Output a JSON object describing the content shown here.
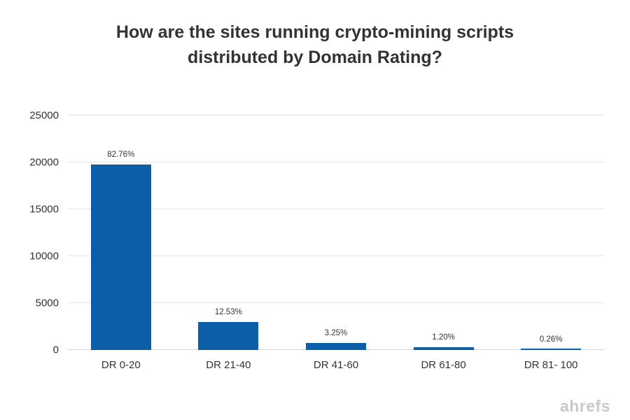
{
  "title": "How are the sites running crypto-mining scripts distributed by Domain Rating?",
  "watermark": "ahrefs",
  "colors": {
    "bar": "#0c5ea8",
    "gridline": "#e4e4e4",
    "text": "#333333",
    "watermark": "#c6c9cc"
  },
  "chart_data": {
    "type": "bar",
    "title": "How are the sites running crypto-mining scripts distributed by Domain Rating?",
    "categories": [
      "DR 0-20",
      "DR 21-40",
      "DR 41-60",
      "DR 61-80",
      "DR 81- 100"
    ],
    "values": [
      19780,
      2995,
      777,
      287,
      62
    ],
    "bar_labels": [
      "82.76%",
      "12.53%",
      "3.25%",
      "1.20%",
      "0.26%"
    ],
    "xlabel": "",
    "ylabel": "",
    "ylim": [
      0,
      25000
    ],
    "yticks": [
      0,
      5000,
      10000,
      15000,
      20000,
      25000
    ],
    "grid": true,
    "legend_position": "none",
    "bar_color": "#0c5ea8"
  }
}
